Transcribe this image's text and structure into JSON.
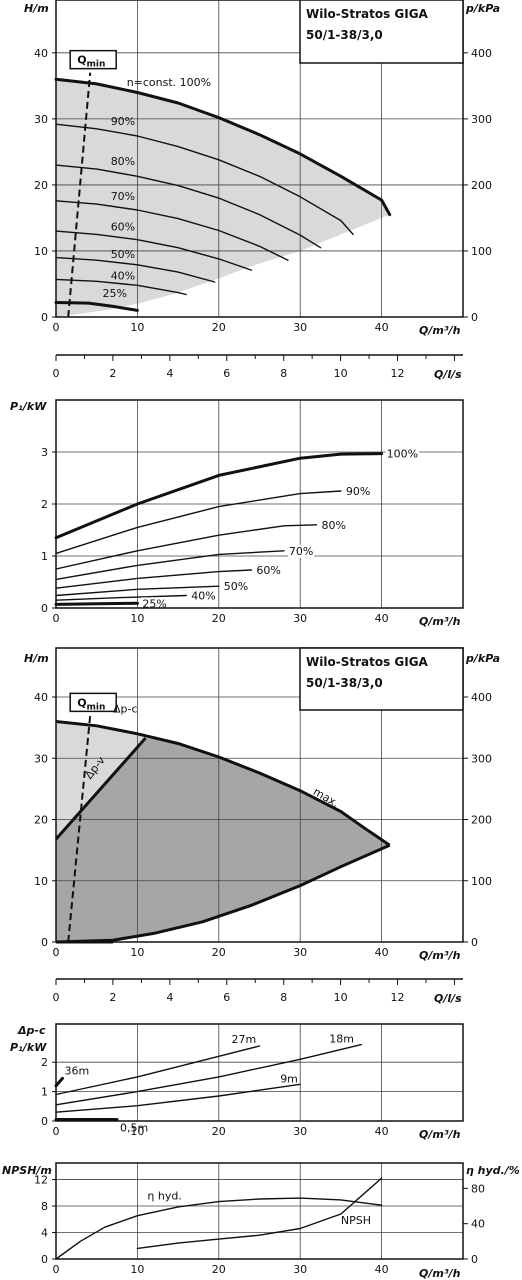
{
  "colors": {
    "axis": "#111111",
    "grid": "#444444",
    "region_light": "#d9d9d9",
    "region_dark": "#a6a6a6",
    "curve": "#111111",
    "background": "#ffffff"
  },
  "chart_data": [
    {
      "id": "head_speed",
      "type": "line",
      "title": "Wilo-Stratos GIGA",
      "subtitle": "50/1-38/3,0",
      "xlabel": "Q/m³/h",
      "ylabel": "H/m",
      "ylabel_right": "p/kPa",
      "xlim": [
        0,
        50
      ],
      "ylim": [
        0,
        48
      ],
      "ylim_right": [
        0,
        480
      ],
      "xticks": [
        "0",
        "10",
        "20",
        "30",
        "40"
      ],
      "yticks": [
        "0",
        "10",
        "20",
        "30",
        "40"
      ],
      "yticks_right": [
        "0",
        "100",
        "200",
        "300",
        "400"
      ],
      "qmin_label": "Q",
      "qmin_sub": "min",
      "qmin_line": [
        [
          1.5,
          0
        ],
        [
          4.2,
          37
        ]
      ],
      "region": [
        [
          0,
          36
        ],
        [
          5,
          35.3
        ],
        [
          10,
          34
        ],
        [
          15,
          32.4
        ],
        [
          20,
          30.2
        ],
        [
          25,
          27.6
        ],
        [
          30,
          24.7
        ],
        [
          35,
          21.3
        ],
        [
          40,
          17.7
        ],
        [
          41,
          15.5
        ],
        [
          35,
          12.5
        ],
        [
          30,
          10
        ],
        [
          24,
          7.7
        ],
        [
          19,
          5.4
        ],
        [
          14.5,
          3.5
        ],
        [
          10,
          2
        ],
        [
          6,
          1
        ],
        [
          0,
          0
        ]
      ],
      "series": [
        {
          "name": "n=const. 100%",
          "bold": true,
          "points": [
            [
              0,
              36
            ],
            [
              5,
              35.3
            ],
            [
              10,
              34
            ],
            [
              15,
              32.4
            ],
            [
              20,
              30.2
            ],
            [
              25,
              27.6
            ],
            [
              30,
              24.7
            ],
            [
              35,
              21.3
            ],
            [
              40,
              17.7
            ],
            [
              41,
              15.5
            ]
          ]
        },
        {
          "name": "90%",
          "points": [
            [
              0,
              29.2
            ],
            [
              5,
              28.5
            ],
            [
              10,
              27.4
            ],
            [
              15,
              25.8
            ],
            [
              20,
              23.8
            ],
            [
              25,
              21.3
            ],
            [
              30,
              18.2
            ],
            [
              35,
              14.6
            ],
            [
              36.5,
              12.5
            ]
          ]
        },
        {
          "name": "80%",
          "points": [
            [
              0,
              23
            ],
            [
              5,
              22.4
            ],
            [
              10,
              21.3
            ],
            [
              15,
              19.9
            ],
            [
              20,
              18
            ],
            [
              25,
              15.5
            ],
            [
              30,
              12.4
            ],
            [
              32.5,
              10.5
            ]
          ]
        },
        {
          "name": "70%",
          "points": [
            [
              0,
              17.6
            ],
            [
              5,
              17.1
            ],
            [
              10,
              16.2
            ],
            [
              15,
              14.9
            ],
            [
              20,
              13.1
            ],
            [
              25,
              10.7
            ],
            [
              28.5,
              8.6
            ]
          ]
        },
        {
          "name": "60%",
          "points": [
            [
              0,
              13
            ],
            [
              5,
              12.5
            ],
            [
              10,
              11.7
            ],
            [
              15,
              10.5
            ],
            [
              20,
              8.8
            ],
            [
              24,
              7.1
            ]
          ]
        },
        {
          "name": "50%",
          "points": [
            [
              0,
              9
            ],
            [
              5,
              8.6
            ],
            [
              10,
              7.9
            ],
            [
              15,
              6.8
            ],
            [
              19.5,
              5.3
            ]
          ]
        },
        {
          "name": "40%",
          "points": [
            [
              0,
              5.7
            ],
            [
              5,
              5.4
            ],
            [
              10,
              4.8
            ],
            [
              15,
              3.7
            ],
            [
              16,
              3.4
            ]
          ]
        },
        {
          "name": "25%",
          "bold": true,
          "points": [
            [
              0,
              2.2
            ],
            [
              4,
              2.1
            ],
            [
              7,
              1.6
            ],
            [
              10,
              1
            ]
          ]
        }
      ]
    },
    {
      "id": "flow_ls_axis_1",
      "type": "axis",
      "xlabel": "Q/l/s",
      "xlim": [
        0,
        14.3
      ],
      "xticks": [
        "0",
        "2",
        "4",
        "6",
        "8",
        "10",
        "12"
      ]
    },
    {
      "id": "power_speed",
      "type": "line",
      "xlabel": "Q/m³/h",
      "ylabel": "P₁/kW",
      "xlim": [
        0,
        50
      ],
      "ylim": [
        0,
        4
      ],
      "xticks": [
        "0",
        "10",
        "20",
        "30",
        "40"
      ],
      "yticks": [
        "0",
        "1",
        "2",
        "3"
      ],
      "series": [
        {
          "name": "100%",
          "bold": true,
          "points": [
            [
              0,
              1.35
            ],
            [
              10,
              2
            ],
            [
              20,
              2.55
            ],
            [
              30,
              2.88
            ],
            [
              35,
              2.96
            ],
            [
              40,
              2.97
            ]
          ]
        },
        {
          "name": "90%",
          "points": [
            [
              0,
              1.05
            ],
            [
              10,
              1.55
            ],
            [
              20,
              1.95
            ],
            [
              30,
              2.2
            ],
            [
              35,
              2.25
            ]
          ]
        },
        {
          "name": "80%",
          "points": [
            [
              0,
              0.75
            ],
            [
              10,
              1.1
            ],
            [
              20,
              1.4
            ],
            [
              28,
              1.58
            ],
            [
              32,
              1.6
            ]
          ]
        },
        {
          "name": "70%",
          "points": [
            [
              0,
              0.55
            ],
            [
              10,
              0.82
            ],
            [
              20,
              1.03
            ],
            [
              28,
              1.1
            ]
          ]
        },
        {
          "name": "60%",
          "points": [
            [
              0,
              0.38
            ],
            [
              10,
              0.57
            ],
            [
              20,
              0.7
            ],
            [
              24,
              0.73
            ]
          ]
        },
        {
          "name": "50%",
          "points": [
            [
              0,
              0.24
            ],
            [
              10,
              0.36
            ],
            [
              20,
              0.42
            ]
          ]
        },
        {
          "name": "40%",
          "points": [
            [
              0,
              0.15
            ],
            [
              8,
              0.2
            ],
            [
              16,
              0.24
            ]
          ]
        },
        {
          "name": "25%",
          "bold": true,
          "points": [
            [
              0,
              0.07
            ],
            [
              5,
              0.08
            ],
            [
              10,
              0.09
            ]
          ]
        }
      ]
    },
    {
      "id": "head_control",
      "type": "area",
      "title": "Wilo-Stratos GIGA",
      "subtitle": "50/1-38/3,0",
      "xlabel": "Q/m³/h",
      "ylabel": "H/m",
      "ylabel_right": "p/kPa",
      "xlim": [
        0,
        50
      ],
      "ylim": [
        0,
        48
      ],
      "ylim_right": [
        0,
        480
      ],
      "xticks": [
        "0",
        "10",
        "20",
        "30",
        "40"
      ],
      "yticks": [
        "0",
        "10",
        "20",
        "30",
        "40"
      ],
      "yticks_right": [
        "0",
        "100",
        "200",
        "300",
        "400"
      ],
      "qmin_label": "Q",
      "qmin_sub": "min",
      "qmin_line": [
        [
          1.5,
          0
        ],
        [
          4.2,
          37
        ]
      ],
      "max_curve": [
        [
          0,
          36
        ],
        [
          5,
          35.3
        ],
        [
          10,
          34
        ],
        [
          15,
          32.4
        ],
        [
          20,
          30.2
        ],
        [
          25,
          27.6
        ],
        [
          30,
          24.7
        ],
        [
          35,
          21.3
        ],
        [
          38,
          18.5
        ],
        [
          41,
          15.8
        ]
      ],
      "lower_curve": [
        [
          0,
          0
        ],
        [
          7,
          0.3
        ],
        [
          12,
          1.4
        ],
        [
          18,
          3.3
        ],
        [
          24,
          6
        ],
        [
          30,
          9.2
        ],
        [
          35,
          12.3
        ],
        [
          41,
          15.8
        ]
      ],
      "dp_v_line": [
        [
          0,
          16.8
        ],
        [
          11,
          33.3
        ]
      ],
      "labels": {
        "dp_c": "Δp-c",
        "dp_v": "Δp-v",
        "max": "max."
      }
    },
    {
      "id": "flow_ls_axis_2",
      "type": "axis",
      "xlabel": "Q/l/s",
      "xlim": [
        0,
        14.3
      ],
      "xticks": [
        "0",
        "2",
        "4",
        "6",
        "8",
        "10",
        "12"
      ]
    },
    {
      "id": "power_control",
      "type": "line",
      "xlabel": "Q/m³/h",
      "ylabel": "P₁/kW",
      "ylabel_top": "Δp-c",
      "xlim": [
        0,
        50
      ],
      "ylim": [
        0,
        3.3
      ],
      "xticks": [
        "0",
        "10",
        "20",
        "30",
        "40"
      ],
      "yticks": [
        "0",
        "1",
        "2"
      ],
      "series": [
        {
          "name": "36m",
          "bold": true,
          "points": [
            [
              0,
              1.2
            ],
            [
              0.8,
              1.45
            ]
          ]
        },
        {
          "name": "27m",
          "points": [
            [
              0,
              0.9
            ],
            [
              10,
              1.5
            ],
            [
              20,
              2.2
            ],
            [
              25,
              2.55
            ]
          ]
        },
        {
          "name": "18m",
          "points": [
            [
              0,
              0.55
            ],
            [
              10,
              1
            ],
            [
              20,
              1.5
            ],
            [
              30,
              2.1
            ],
            [
              37.5,
              2.6
            ]
          ]
        },
        {
          "name": "9m",
          "points": [
            [
              0,
              0.3
            ],
            [
              10,
              0.52
            ],
            [
              20,
              0.85
            ],
            [
              30,
              1.25
            ]
          ]
        },
        {
          "name": "0,5m",
          "bold": true,
          "points": [
            [
              0,
              0.05
            ],
            [
              7.5,
              0.05
            ]
          ]
        }
      ]
    },
    {
      "id": "npsh_eff",
      "type": "line",
      "xlabel": "Q/m³/h",
      "ylabel": "NPSH/m",
      "ylabel_right": "η hyd./%",
      "xlim": [
        0,
        50
      ],
      "ylim": [
        0,
        14.5
      ],
      "ylim_right": [
        0,
        108.75
      ],
      "xticks": [
        "0",
        "10",
        "20",
        "30",
        "40"
      ],
      "yticks": [
        "0",
        "4",
        "8",
        "12"
      ],
      "yticks_right": [
        "0",
        "40",
        "80"
      ],
      "series": [
        {
          "name": "η hyd.",
          "axis": "right",
          "points": [
            [
              0,
              0
            ],
            [
              3,
              20
            ],
            [
              6,
              36
            ],
            [
              10,
              49
            ],
            [
              15,
              59
            ],
            [
              20,
              65
            ],
            [
              25,
              68
            ],
            [
              30,
              69
            ],
            [
              35,
              67
            ],
            [
              40,
              61
            ]
          ]
        },
        {
          "name": "NPSH",
          "axis": "left",
          "points": [
            [
              10,
              1.6
            ],
            [
              15,
              2.4
            ],
            [
              20,
              3
            ],
            [
              25,
              3.6
            ],
            [
              30,
              4.6
            ],
            [
              35,
              6.8
            ],
            [
              40,
              12.2
            ]
          ]
        }
      ]
    }
  ]
}
